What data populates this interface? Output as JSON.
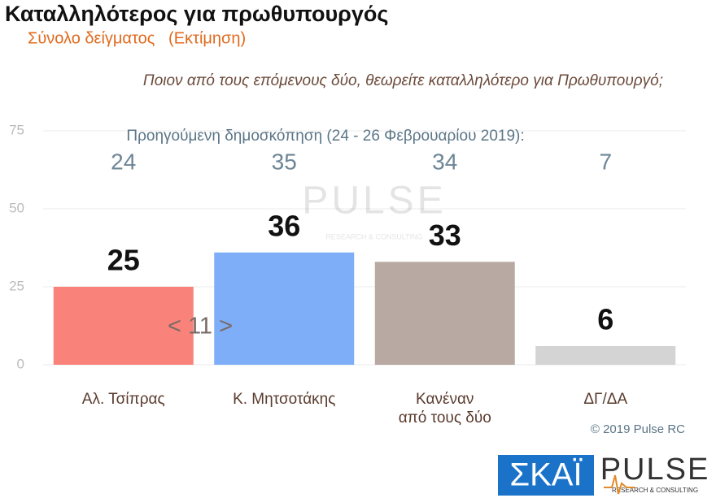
{
  "chart_data": {
    "type": "bar",
    "title": "Καταλληλότερος για πρωθυπουργός",
    "subtitle": "Σύνολο δείγματος   (Εκτίμηση)",
    "question": "Ποιον από τους επόμενους δύο, θεωρείτε καταλληλότερο για Πρωθυπουργό;",
    "categories": [
      "Αλ. Τσίπρας",
      "Κ. Μητσοτάκης",
      "Κανέναν\nαπό τους δύο",
      "ΔΓ/ΔΑ"
    ],
    "values": [
      25,
      36,
      33,
      6
    ],
    "colors": [
      "#f9837a",
      "#7eaef7",
      "#b9a9a3",
      "#d4d4d4"
    ],
    "previous": {
      "label": "Προηγούμενη δημοσκόπηση (24 - 26 Φεβρουαρίου 2019):",
      "values": [
        24,
        35,
        34,
        7
      ]
    },
    "annotation": "< 11 >",
    "ylim": [
      0,
      75
    ],
    "yticks": [
      0,
      25,
      50,
      75
    ],
    "grid": true,
    "copyright": "© 2019 Pulse RC",
    "logos": {
      "skai": "ΣΚΑΪ",
      "pulse": "PULSE",
      "pulse_tagline": "RESEARCH & CONSULTING"
    }
  }
}
